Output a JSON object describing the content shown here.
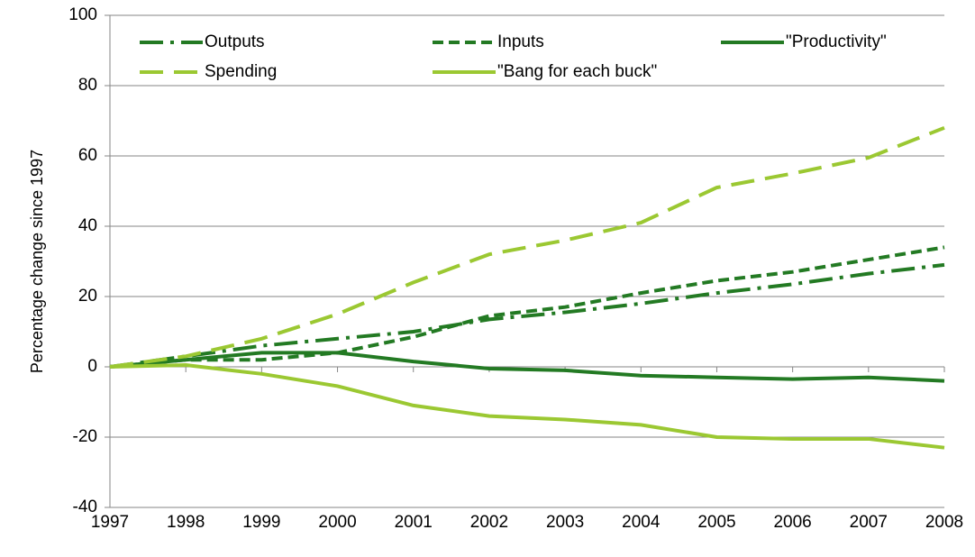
{
  "chart_data": {
    "type": "line",
    "y_label": "Percentage change since 1997",
    "x": [
      1997,
      1998,
      1999,
      2000,
      2001,
      2002,
      2003,
      2004,
      2005,
      2006,
      2007,
      2008
    ],
    "xlim": [
      1997,
      2008
    ],
    "xticks": [
      1997,
      1998,
      1999,
      2000,
      2001,
      2002,
      2003,
      2004,
      2005,
      2006,
      2007,
      2008
    ],
    "ylim": [
      -40,
      100
    ],
    "yticks": [
      -40,
      -20,
      0,
      20,
      40,
      60,
      80,
      100
    ],
    "grid": true,
    "legend": "top",
    "series": [
      {
        "name": "Outputs",
        "color": "#237a23",
        "dash": "long-dash-dot",
        "values": [
          0,
          3,
          6,
          8,
          10,
          13.5,
          15.5,
          18,
          21,
          23.5,
          26.5,
          29
        ]
      },
      {
        "name": "Inputs",
        "color": "#237a23",
        "dash": "dash",
        "values": [
          0,
          2,
          2,
          4,
          8.5,
          14.5,
          17,
          21,
          24.5,
          27,
          30.5,
          34
        ]
      },
      {
        "name": "\"Productivity\"",
        "color": "#237a23",
        "dash": "solid",
        "values": [
          0,
          2,
          4,
          4,
          1.5,
          -0.5,
          -1,
          -2.5,
          -3,
          -3.5,
          -3,
          -4
        ]
      },
      {
        "name": "Spending",
        "color": "#9bc832",
        "dash": "long-dash",
        "values": [
          0,
          3,
          8,
          15,
          24,
          32,
          36,
          41,
          51,
          55,
          59.5,
          68
        ]
      },
      {
        "name": "\"Bang for each buck\"",
        "color": "#9bc832",
        "dash": "solid",
        "values": [
          0,
          0.5,
          -2,
          -5.5,
          -11,
          -14,
          -15,
          -16.5,
          -20,
          -20.5,
          -20.5,
          -23
        ]
      }
    ]
  }
}
